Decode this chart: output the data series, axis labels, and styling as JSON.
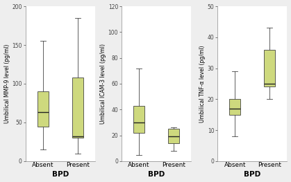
{
  "plots": [
    {
      "ylabel": "Umbilical MMP-9 level (pg/ml)",
      "xlabel": "BPD",
      "ylim": [
        0,
        200
      ],
      "yticks": [
        0,
        50,
        100,
        150,
        200
      ],
      "categories": [
        "Absent",
        "Present"
      ],
      "boxes": [
        {
          "whislo": 15,
          "q1": 45,
          "med": 63,
          "q3": 90,
          "whishi": 155
        },
        {
          "whislo": 10,
          "q1": 30,
          "med": 32,
          "q3": 108,
          "whishi": 185
        }
      ]
    },
    {
      "ylabel": "Umbilical ICAM-3 level (pg/ml)",
      "xlabel": "BPD",
      "ylim": [
        0,
        120
      ],
      "yticks": [
        0,
        20,
        40,
        60,
        80,
        100,
        120
      ],
      "categories": [
        "Absent",
        "Present"
      ],
      "boxes": [
        {
          "whislo": 5,
          "q1": 22,
          "med": 30,
          "q3": 43,
          "whishi": 72
        },
        {
          "whislo": 8,
          "q1": 14,
          "med": 19,
          "q3": 25,
          "whishi": 26
        }
      ]
    },
    {
      "ylabel": "Umbilical TNF-α level (pg/ml)",
      "xlabel": "BPD",
      "ylim": [
        0,
        50
      ],
      "yticks": [
        0,
        10,
        20,
        30,
        40,
        50
      ],
      "categories": [
        "Absent",
        "Present"
      ],
      "boxes": [
        {
          "whislo": 8,
          "q1": 15,
          "med": 17,
          "q3": 20,
          "whishi": 29
        },
        {
          "whislo": 20,
          "q1": 24,
          "med": 25,
          "q3": 36,
          "whishi": 43
        }
      ]
    }
  ],
  "box_color": "#ced97e",
  "box_edge_color": "#444444",
  "median_color": "#222222",
  "whisker_color": "#444444",
  "cap_color": "#444444",
  "background_color": "#ffffff",
  "fig_background": "#eeeeee",
  "box_width": 0.32,
  "ylabel_fontsize": 5.5,
  "xlabel_fontsize": 7.5,
  "tick_fontsize": 5.5,
  "cat_fontsize": 6.5
}
